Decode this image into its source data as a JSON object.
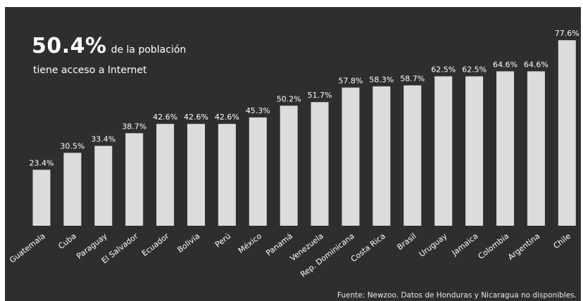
{
  "headline": {
    "value": "50.4%",
    "rest": "de la población",
    "line2": "tiene acceso a Internet"
  },
  "source": "Fuente: Newzoo. Datos de Honduras y Nicaragua no disponibles.",
  "colors": {
    "background": "#2e2e2e",
    "bar": "#dcdcdc",
    "text": "#ffffff"
  },
  "chart_data": {
    "type": "bar",
    "title": "",
    "xlabel": "",
    "ylabel": "",
    "ylim": [
      0,
      80
    ],
    "grid": false,
    "categories": [
      "Guatemala",
      "Cuba",
      "Paraguay",
      "El Salvador",
      "Ecuador",
      "Bolivia",
      "Perú",
      "México",
      "Panamá",
      "Venezuela",
      "Rep. Dominicana",
      "Costa Rica",
      "Brasil",
      "Uruguay",
      "Jamaica",
      "Colombia",
      "Argentina",
      "Chile"
    ],
    "values": [
      23.4,
      30.5,
      33.4,
      38.7,
      42.6,
      42.6,
      42.6,
      45.3,
      50.2,
      51.7,
      57.8,
      58.3,
      58.7,
      62.5,
      62.5,
      64.6,
      64.6,
      77.6
    ],
    "value_labels": [
      "23.4%",
      "30.5%",
      "33.4%",
      "38.7%",
      "42.6%",
      "42.6%",
      "42.6%",
      "45.3%",
      "50.2%",
      "51.7%",
      "57.8%",
      "58.3%",
      "58.7%",
      "62.5%",
      "62.5%",
      "64.6%",
      "64.6%",
      "77.6%"
    ]
  }
}
